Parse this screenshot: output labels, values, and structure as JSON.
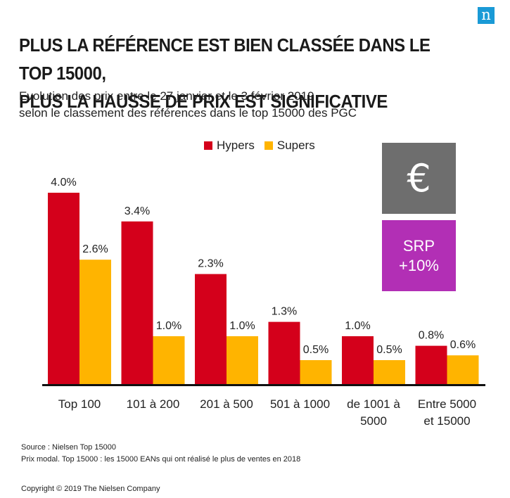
{
  "brand": {
    "logo_letter": "n",
    "logo_color": "#1a9ad6"
  },
  "title_lines": [
    "PLUS LA RÉFÉRENCE EST BIEN CLASSÉE DANS LE TOP 15000,",
    "PLUS LA HAUSSE DE PRIX EST SIGNIFICATIVE"
  ],
  "subtitle_lines": [
    "Evolution des prix entre le 27 janvier et le 3 février 2019",
    "selon le classement des références dans le top 15000 des PGC"
  ],
  "side_panel": {
    "euro_symbol": "€",
    "euro_box_color": "#6e6e6e",
    "srp_line1": "SRP",
    "srp_line2": "+10%",
    "srp_box_color": "#b22fb5"
  },
  "chart_data": {
    "type": "bar",
    "categories": [
      [
        "Top 100"
      ],
      [
        "101 à 200"
      ],
      [
        "201 à 500"
      ],
      [
        "501 à 1000"
      ],
      [
        "de 1001 à",
        "5000"
      ],
      [
        "Entre 5000",
        "et 15000"
      ]
    ],
    "series": [
      {
        "name": "Hypers",
        "color": "#d4001b",
        "values": [
          4.0,
          3.4,
          2.3,
          1.3,
          1.0,
          0.8
        ],
        "labels": [
          "4.0%",
          "3.4%",
          "2.3%",
          "1.3%",
          "1.0%",
          "0.8%"
        ]
      },
      {
        "name": "Supers",
        "color": "#ffb400",
        "values": [
          2.6,
          1.0,
          1.0,
          0.5,
          0.5,
          0.6
        ],
        "labels": [
          "2.6%",
          "1.0%",
          "1.0%",
          "0.5%",
          "0.5%",
          "0.6%"
        ]
      }
    ],
    "ylim": [
      0,
      4.0
    ],
    "grid": false,
    "legend": "top-center"
  },
  "footer": {
    "source": "Source : Nielsen  Top 15000",
    "note": "Prix modal. Top 15000  : les 15000  EANs qui ont réalisé  le plus de ventes en 2018",
    "copyright": "Copyright © 2019 The Nielsen Company"
  }
}
